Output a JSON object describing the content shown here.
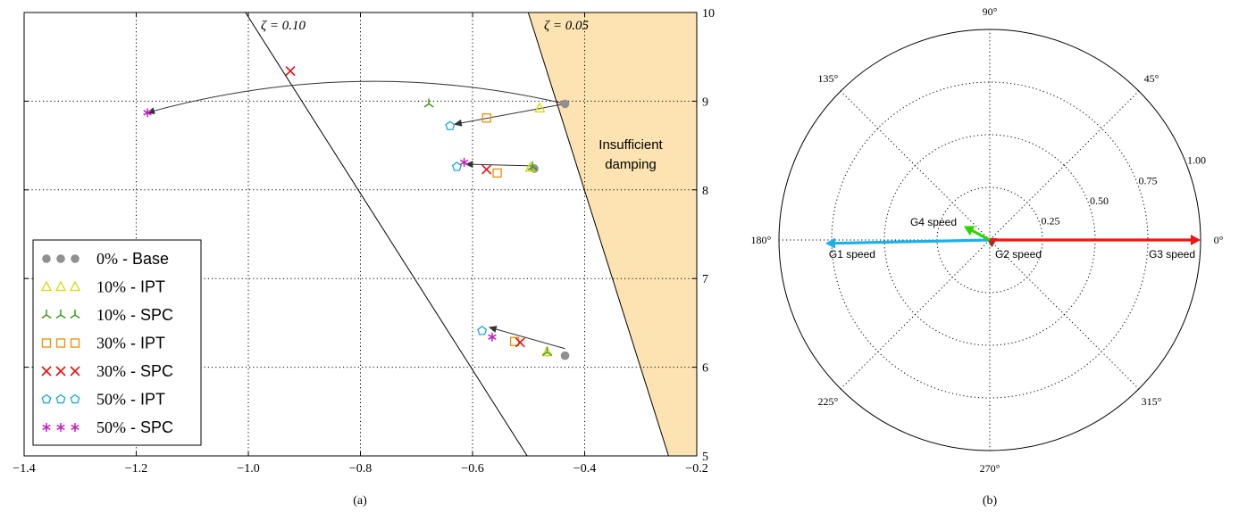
{
  "chart_data": [
    {
      "type": "scatter",
      "caption": "(a)",
      "xlim": [
        -1.4,
        -0.2
      ],
      "ylim": [
        5,
        10
      ],
      "x_ticks": [
        -1.4,
        -1.2,
        -1.0,
        -0.8,
        -0.6,
        -0.4,
        -0.2
      ],
      "x_tick_labels": [
        "−1.4",
        "−1.2",
        "−1.0",
        "−0.8",
        "−0.6",
        "−0.4",
        "−0.2"
      ],
      "y_ticks": [
        5,
        6,
        7,
        8,
        9,
        10
      ],
      "y_tick_labels": [
        "5",
        "6",
        "7",
        "8",
        "9",
        "10"
      ],
      "grid": true,
      "y_axis_side": "right",
      "legend_position": "lower-left",
      "damping_lines": [
        {
          "label": "ζ = 0.10",
          "zeta": 0.1
        },
        {
          "label": "ζ = 0.05",
          "zeta": 0.05
        }
      ],
      "region": {
        "label_lines": [
          "Insufficient",
          "damping"
        ],
        "color": "#fde3b2"
      },
      "series": [
        {
          "name": "0% - Base",
          "legend_pct": "0%",
          "legend_label": " - Base",
          "marker": "circle",
          "color": "#909090",
          "points": [
            [
              -0.435,
              8.97
            ],
            [
              -0.49,
              8.24
            ],
            [
              -0.435,
              6.13
            ]
          ]
        },
        {
          "name": "10% - IPT",
          "legend_pct": "10%",
          "legend_label": " - IPT",
          "marker": "triangle",
          "color": "#d9d900",
          "points": [
            [
              -0.48,
              8.92
            ],
            [
              -0.497,
              8.25
            ],
            [
              -0.467,
              6.17
            ]
          ]
        },
        {
          "name": "10% - SPC",
          "legend_pct": "10%",
          "legend_label": " - SPC",
          "marker": "tri",
          "color": "#3a9a1a",
          "points": [
            [
              -0.678,
              8.97
            ],
            [
              -0.493,
              8.26
            ],
            [
              -0.467,
              6.17
            ]
          ]
        },
        {
          "name": "30% - IPT",
          "legend_pct": "30%",
          "legend_label": " - IPT",
          "marker": "square",
          "color": "#f08c00",
          "points": [
            [
              -0.575,
              8.81
            ],
            [
              -0.556,
              8.19
            ],
            [
              -0.525,
              6.29
            ]
          ]
        },
        {
          "name": "30% - SPC",
          "legend_pct": "30%",
          "legend_label": " - SPC",
          "marker": "x",
          "color": "#e81010",
          "points": [
            [
              -0.925,
              9.34
            ],
            [
              -0.575,
              8.23
            ],
            [
              -0.515,
              6.28
            ]
          ]
        },
        {
          "name": "50% - IPT",
          "legend_pct": "50%",
          "legend_label": " - IPT",
          "marker": "pentagon",
          "color": "#1aa6de",
          "points": [
            [
              -0.64,
              8.72
            ],
            [
              -0.628,
              8.26
            ],
            [
              -0.583,
              6.41
            ]
          ]
        },
        {
          "name": "50% - SPC",
          "legend_pct": "50%",
          "legend_label": " - SPC",
          "marker": "star",
          "color": "#c21ec2",
          "points": [
            [
              -1.18,
              8.87
            ],
            [
              -0.615,
              8.31
            ],
            [
              -0.565,
              6.34
            ]
          ]
        }
      ],
      "arrows": [
        {
          "from": [
            -0.435,
            8.97
          ],
          "to": [
            -1.18,
            8.87
          ],
          "curved": true
        },
        {
          "from": [
            -0.435,
            8.97
          ],
          "to": [
            -0.632,
            8.74
          ],
          "curved": false
        },
        {
          "from": [
            -0.487,
            8.27
          ],
          "to": [
            -0.612,
            8.29
          ],
          "curved": false
        },
        {
          "from": [
            -0.435,
            6.21
          ],
          "to": [
            -0.57,
            6.45
          ],
          "curved": false
        }
      ]
    },
    {
      "type": "polar",
      "caption": "(b)",
      "angle_labels": [
        {
          "angle": 0,
          "text": "0°"
        },
        {
          "angle": 45,
          "text": "45°"
        },
        {
          "angle": 90,
          "text": "90°"
        },
        {
          "angle": 135,
          "text": "135°"
        },
        {
          "angle": 180,
          "text": "180°"
        },
        {
          "angle": 225,
          "text": "225°"
        },
        {
          "angle": 270,
          "text": "270°"
        },
        {
          "angle": 315,
          "text": "315°"
        }
      ],
      "radial_ticks": [
        0.25,
        0.5,
        0.75,
        1.0
      ],
      "radial_tick_labels": [
        "0.25",
        "0.50",
        "0.75",
        "1.00"
      ],
      "r_max": 1.0,
      "grid": true,
      "vectors": [
        {
          "label": "G1 speed",
          "angle": 181.2,
          "magnitude": 0.78,
          "color": "#1ab0ea"
        },
        {
          "label": "G2 speed",
          "angle": 150,
          "magnitude": 0.02,
          "color": "#8b3a2a"
        },
        {
          "label": "G3 speed",
          "angle": 0,
          "magnitude": 1.0,
          "color": "#f01414"
        },
        {
          "label": "G4 speed",
          "angle": 152,
          "magnitude": 0.14,
          "color": "#2ed400"
        }
      ]
    }
  ]
}
